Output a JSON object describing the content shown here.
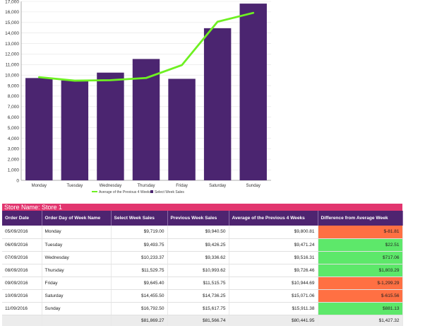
{
  "chart_data": {
    "type": "bar",
    "categories": [
      "Monday",
      "Tuesday",
      "Wednesday",
      "Thursday",
      "Friday",
      "Saturday",
      "Sunday"
    ],
    "series": [
      {
        "name": "Select Week Sales",
        "kind": "bar",
        "values": [
          9719.0,
          9493.75,
          10233.37,
          11529.75,
          9645.4,
          14455.5,
          16792.5
        ]
      },
      {
        "name": "Average of the Previous 4 Weeks",
        "kind": "line",
        "values": [
          9800.81,
          9471.24,
          9516.31,
          9726.46,
          10944.69,
          15071.06,
          15911.38
        ]
      }
    ],
    "ylim": [
      0,
      17000
    ],
    "yticks": [
      "0",
      "1,000",
      "2,000",
      "3,000",
      "4,000",
      "5,000",
      "6,000",
      "7,000",
      "8,000",
      "9,000",
      "10,000",
      "11,000",
      "12,000",
      "13,000",
      "14,000",
      "15,000",
      "16,000",
      "17,000"
    ],
    "legend": [
      "Average of the Previous 4 Weeks",
      "Select Week Sales"
    ],
    "legend_position": "bottom",
    "colors": {
      "bar": "#4b2570",
      "line": "#6ef022"
    },
    "grid": true
  },
  "store": {
    "label": "Store Name: Store 1"
  },
  "table": {
    "headers": [
      "Order Date",
      "Order Day of Week Name",
      "Select Week Sales",
      "Previous Week Sales",
      "Average of the Previous 4 Weeks",
      "Difference from Average Week"
    ],
    "rows": [
      {
        "date": "05/09/2016",
        "day": "Monday",
        "select": "$9,719.00",
        "previous": "$9,940.50",
        "average": "$9,800.81",
        "diff": "$-81.81",
        "status": "negative"
      },
      {
        "date": "06/09/2016",
        "day": "Tuesday",
        "select": "$9,493.75",
        "previous": "$9,426.25",
        "average": "$9,471.24",
        "diff": "$22.51",
        "status": "positive"
      },
      {
        "date": "07/09/2016",
        "day": "Wednesday",
        "select": "$10,233.37",
        "previous": "$9,336.62",
        "average": "$9,516.31",
        "diff": "$717.06",
        "status": "positive"
      },
      {
        "date": "08/09/2016",
        "day": "Thursday",
        "select": "$11,529.75",
        "previous": "$10,993.62",
        "average": "$9,726.46",
        "diff": "$1,803.29",
        "status": "positive"
      },
      {
        "date": "09/09/2016",
        "day": "Friday",
        "select": "$9,645.40",
        "previous": "$11,515.75",
        "average": "$10,944.69",
        "diff": "$-1,299.29",
        "status": "negative"
      },
      {
        "date": "10/09/2016",
        "day": "Saturday",
        "select": "$14,455.50",
        "previous": "$14,736.25",
        "average": "$15,071.06",
        "diff": "$-615.56",
        "status": "negative"
      },
      {
        "date": "11/09/2016",
        "day": "Sunday",
        "select": "$16,792.50",
        "previous": "$15,617.75",
        "average": "$15,911.38",
        "diff": "$881.13",
        "status": "positive"
      }
    ],
    "totals": {
      "select": "$81,869.27",
      "previous": "$81,566.74",
      "average": "$80,441.95",
      "diff": "$1,427.32"
    }
  }
}
